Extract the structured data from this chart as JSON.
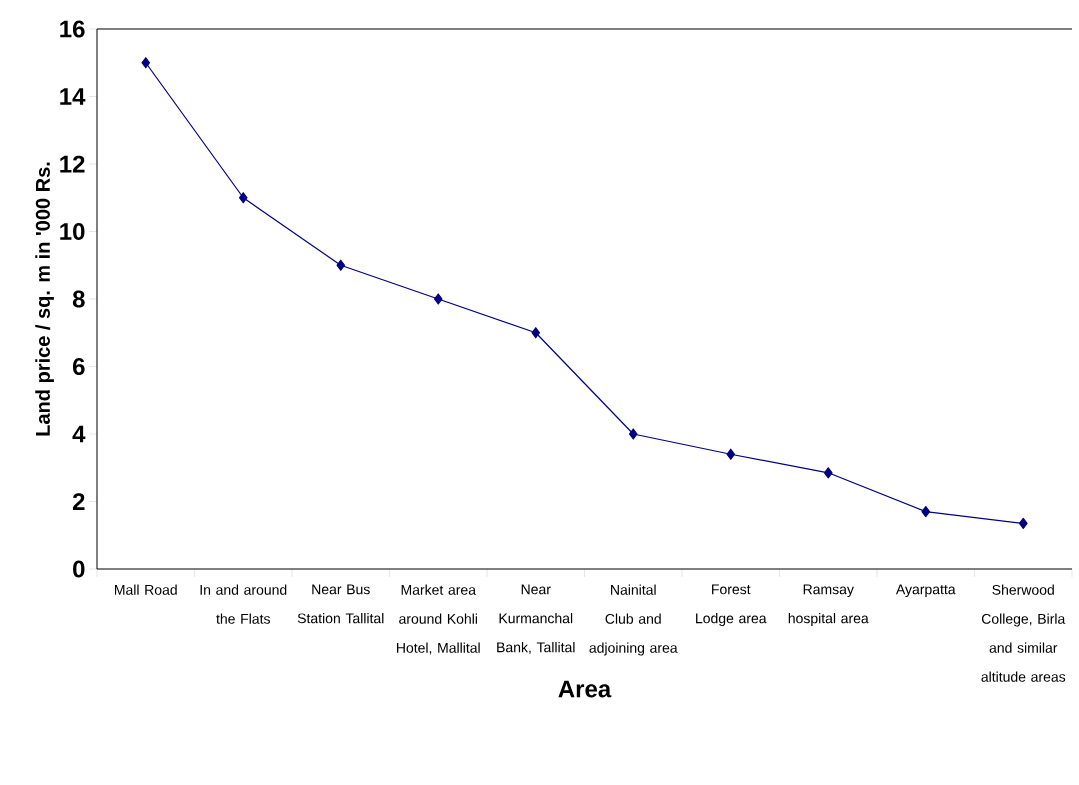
{
  "chart_data": {
    "type": "line",
    "xlabel": "Area",
    "ylabel": "Land price / sq. m in '000 Rs.",
    "categories": [
      "Mall Road",
      "In and around the Flats",
      "Near Bus Station Tallital",
      "Market area around Kohli Hotel, Mallital",
      "Near Kurmanchal Bank, Tallital",
      "Nainital Club and adjoining area",
      "Forest Lodge area",
      "Ramsay hospital area",
      "Ayarpatta",
      "Sherwood College, Birla and similar altitude areas"
    ],
    "values": [
      15,
      11,
      9,
      8,
      7,
      4,
      3.4,
      2.85,
      1.7,
      1.35
    ],
    "color": "#000080",
    "marker": "diamond",
    "line_style": "solid",
    "ylim": [
      0,
      16
    ],
    "yticks": [
      0,
      2,
      4,
      6,
      8,
      10,
      12,
      14,
      16
    ]
  }
}
